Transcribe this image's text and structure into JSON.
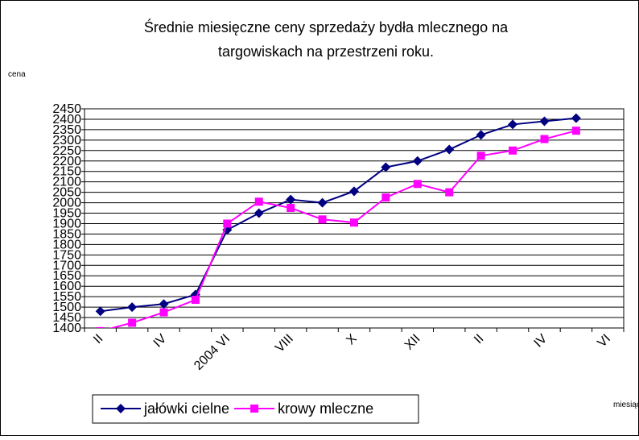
{
  "chart_data": {
    "type": "line",
    "title": [
      "Średnie miesięczne ceny sprzedaży bydła mlecznego na",
      "targowiskach na przestrzeni roku."
    ],
    "y_label": "cena",
    "x_label": "miesiąc",
    "categories": [
      "II",
      null,
      "IV",
      null,
      "2004 VI",
      null,
      "VIII",
      null,
      "X",
      null,
      "XII",
      null,
      "II",
      null,
      "IV",
      null,
      "VI"
    ],
    "series": [
      {
        "name": "jałówki cielne",
        "color": "#000080",
        "marker": "diamond",
        "values": [
          1480,
          1500,
          1515,
          1560,
          1870,
          1950,
          2015,
          2000,
          2055,
          2170,
          2200,
          2255,
          2325,
          2375,
          2390,
          2405,
          null
        ]
      },
      {
        "name": "krowy mleczne",
        "color": "#ff00ff",
        "marker": "square",
        "values": [
          1385,
          1425,
          1475,
          1535,
          1900,
          2005,
          1975,
          1920,
          1905,
          2025,
          2090,
          2050,
          2225,
          2250,
          2305,
          2345,
          null
        ]
      }
    ],
    "ylim": [
      1400,
      2450
    ],
    "yticks": [
      1400,
      1450,
      1500,
      1550,
      1600,
      1650,
      1700,
      1750,
      1800,
      1850,
      1900,
      1950,
      2000,
      2050,
      2100,
      2150,
      2200,
      2250,
      2300,
      2350,
      2400,
      2450
    ],
    "grid": true,
    "legend": "bottom"
  }
}
